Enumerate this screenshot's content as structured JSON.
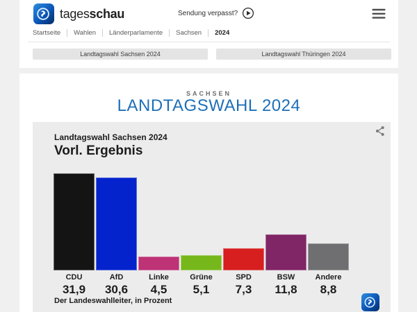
{
  "brand": {
    "name_regular": "tages",
    "name_bold": "schau"
  },
  "header": {
    "watch_link_label": "Sendung verpasst?",
    "breadcrumb": [
      "Startseite",
      "Wahlen",
      "Länderparlamente",
      "Sachsen",
      "2024"
    ],
    "nav_buttons": [
      {
        "label": "Landtagswahl Sachsen 2024"
      },
      {
        "label": "Landtagswahl Thüringen 2024"
      }
    ]
  },
  "page": {
    "kicker": "SACHSEN",
    "title": "LANDTAGSWAHL 2024",
    "title_color": "#1d6fb8"
  },
  "chart_data": {
    "type": "bar",
    "title": "Landtagswahl Sachsen 2024",
    "subtitle": "Vorl. Ergebnis",
    "source": "Der Landeswahlleiter, in Prozent",
    "unit": "Prozent",
    "categories": [
      "CDU",
      "AfD",
      "Linke",
      "Grüne",
      "SPD",
      "BSW",
      "Andere"
    ],
    "values": [
      31.9,
      30.6,
      4.5,
      5.1,
      7.3,
      11.8,
      8.8
    ],
    "value_labels": [
      "31,9",
      "30,6",
      "4,5",
      "5,1",
      "7,3",
      "11,8",
      "8,8"
    ],
    "bar_colors": [
      "#141414",
      "#0523cd",
      "#be3276",
      "#76b81b",
      "#d71f1f",
      "#802565",
      "#6f6f72"
    ],
    "xlabel": "",
    "ylabel": "",
    "ylim": [
      0,
      32
    ],
    "grid": false,
    "legend": false
  },
  "icons": {
    "logo": "tagesschau-globe",
    "play": "play-circle",
    "menu": "hamburger-menu",
    "share": "share-nodes"
  },
  "colors": {
    "page_background": "#f0f0f0",
    "card_background": "#ffffff",
    "chart_background": "#ececec",
    "button_background": "#e4e4e4"
  }
}
